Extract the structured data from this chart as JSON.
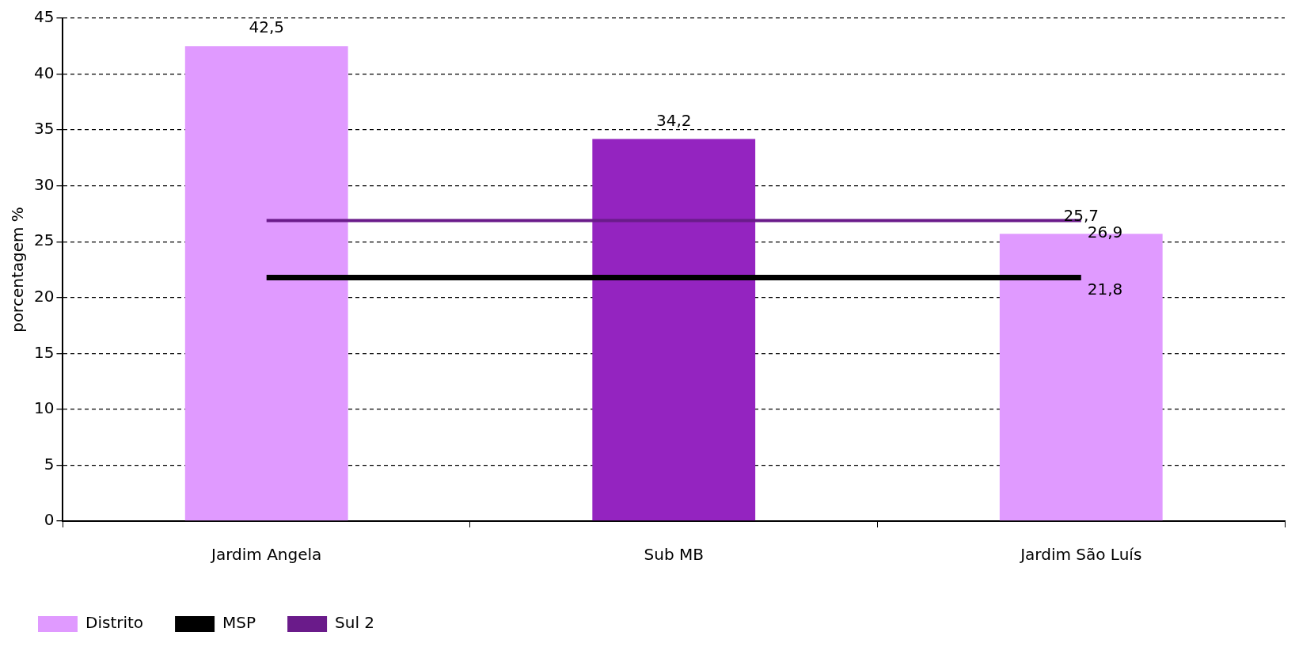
{
  "chart_data": {
    "type": "bar",
    "ylabel": "porcentagem %",
    "categories": [
      "Jardim Angela",
      "Sub MB",
      "Jardim São Luís"
    ],
    "series": [
      {
        "name": "Distrito",
        "type": "bar",
        "color": "#e09aff",
        "colors": [
          "#e09aff",
          "#9424c0",
          "#e09aff"
        ],
        "values": [
          42.5,
          34.2,
          25.7
        ],
        "value_labels": [
          "42,5",
          "34,2",
          "25,7"
        ]
      },
      {
        "name": "MSP",
        "type": "line",
        "color": "#000000",
        "values": [
          21.8,
          21.8,
          21.8
        ],
        "value_labels": [
          null,
          null,
          "21,8"
        ]
      },
      {
        "name": "Sul 2",
        "type": "line",
        "color": "#6a1b8a",
        "values": [
          26.9,
          26.9,
          26.9
        ],
        "value_labels": [
          null,
          null,
          "26,9"
        ]
      }
    ],
    "ylim": [
      0,
      45
    ],
    "yticks": [
      0,
      5,
      10,
      15,
      20,
      25,
      30,
      35,
      40,
      45
    ],
    "grid": "y",
    "legend": "bottom left",
    "marker": "none",
    "line_style": "solid"
  }
}
